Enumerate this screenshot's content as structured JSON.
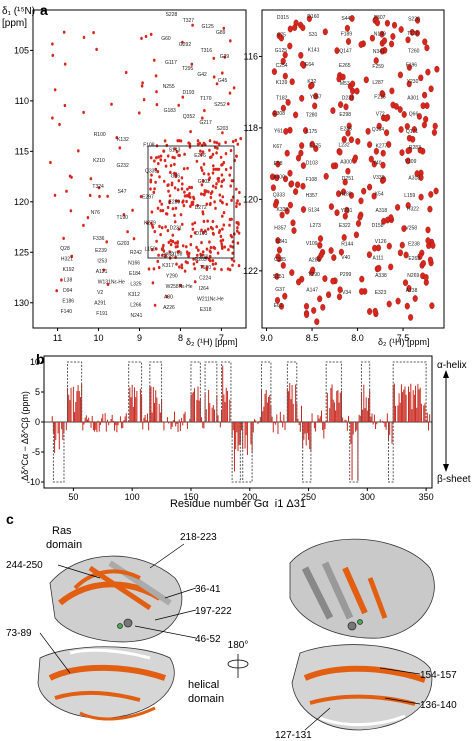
{
  "panel_a": {
    "label": "a",
    "ylabel_line1": "δ₁ (¹⁵N)",
    "ylabel_line2": "[ppm]",
    "left": {
      "xlabel": "δ₂ (¹H) [ppm]",
      "x_ticks": [
        "11",
        "10",
        "9",
        "8",
        "7"
      ],
      "y_ticks": [
        "105",
        "110",
        "115",
        "120",
        "125",
        "130"
      ],
      "peak_labels": [
        "S228",
        "T327",
        "G125",
        "G89",
        "G60",
        "G292",
        "T316",
        "G29",
        "G117",
        "T295",
        "G42",
        "G45",
        "N255",
        "D193",
        "T170",
        "S252",
        "G183",
        "Q352",
        "G217",
        "S203",
        "R100",
        "K132",
        "F108",
        "S143",
        "E276",
        "K210",
        "G232",
        "Q333",
        "G96",
        "G102",
        "T324",
        "S47",
        "E297",
        "E289",
        "D272",
        "N76",
        "T190",
        "K279",
        "D231",
        "D103",
        "F336",
        "G203",
        "L159",
        "D158",
        "R205",
        "Q28",
        "E239",
        "R242",
        "S263",
        "K70",
        "H321",
        "I253",
        "N166",
        "K317",
        "T120",
        "K192",
        "A121",
        "E184",
        "Y290",
        "C224",
        "L38",
        "W131Nε-He",
        "L325",
        "W258Nε-He",
        "I264",
        "D94",
        "V2",
        "K312",
        "A30",
        "W211Nε-He",
        "E186",
        "A291",
        "L266",
        "A226",
        "E318",
        "F140",
        "F191",
        "N241"
      ]
    },
    "right": {
      "xlabel": "δ₂ (¹H) [ppm]",
      "x_ticks": [
        "9.0",
        "8.5",
        "8.0",
        "7.5"
      ],
      "y_ticks": [
        "116",
        "118",
        "120",
        "122"
      ],
      "peak_labels": [
        "D315",
        "D160",
        "S44",
        "F307",
        "S228",
        "S75",
        "S31",
        "F189",
        "N149",
        "T120",
        "G125",
        "K141",
        "Q147",
        "N341",
        "T260",
        "C254",
        "E64",
        "E265",
        "F259",
        "F196",
        "K139",
        "K32",
        "M53",
        "L287",
        "Y230",
        "T182",
        "Y257",
        "D231",
        "F215",
        "A301",
        "E308",
        "T280",
        "E298",
        "V72",
        "Q66",
        "Y61",
        "L175",
        "E245",
        "Q164",
        "Q171",
        "K67",
        "E275",
        "L232",
        "K277",
        "R283",
        "E58",
        "D103",
        "A300",
        "Y40",
        "V109",
        "A300",
        "F108",
        "D251",
        "V339",
        "A318",
        "Q333",
        "H357",
        "H188",
        "K54",
        "L159",
        "K330",
        "S134",
        "Y231",
        "A318",
        "H322",
        "H357",
        "L273",
        "E322",
        "D158",
        "V258",
        "D341",
        "V109",
        "R144",
        "V126",
        "E238",
        "C335",
        "A285",
        "V40",
        "A111",
        "E263",
        "S151",
        "Y290",
        "P299",
        "A338",
        "N269",
        "G37",
        "A147",
        "V34",
        "E323",
        "A138",
        "E63"
      ]
    }
  },
  "panel_b": {
    "label": "b",
    "ylabel": "Δδ^Cα − Δδ^Cβ (ppm)",
    "xlabel": "Residue number Gα_i1 Δ31",
    "alpha_label": "α-helix",
    "beta_label": "β-sheet",
    "colors": {
      "bar": "#c8281e",
      "structure": "#555555"
    },
    "chart_data": {
      "type": "bar",
      "xlim": [
        25,
        355
      ],
      "ylim": [
        -11,
        11
      ],
      "x_ticks": [
        "50",
        "100",
        "150",
        "200",
        "250",
        "300",
        "350"
      ],
      "y_ticks": [
        "10",
        "5",
        "0",
        "-5",
        "-10"
      ],
      "helix_regions": [
        [
          45,
          57
        ],
        [
          97,
          108
        ],
        [
          115,
          125
        ],
        [
          150,
          158
        ],
        [
          162,
          172
        ],
        [
          176,
          184
        ],
        [
          210,
          218
        ],
        [
          232,
          240
        ],
        [
          265,
          278
        ],
        [
          295,
          302
        ],
        [
          322,
          350
        ]
      ],
      "sheet_regions": [
        [
          33,
          42
        ],
        [
          185,
          192
        ],
        [
          194,
          202
        ],
        [
          245,
          252
        ],
        [
          285,
          292
        ],
        [
          318,
          322
        ]
      ]
    }
  },
  "panel_c": {
    "label": "c",
    "ras_domain_label": "Ras\ndomain",
    "helical_domain_label": "helical\ndomain",
    "rotation_label": "180°",
    "left_callouts": [
      "244-250",
      "218-223",
      "36-41",
      "197-222",
      "46-52",
      "73-89"
    ],
    "right_callouts": [
      "154-157",
      "136-140",
      "127-131"
    ],
    "colors": {
      "ribbon": "#bdbdbd",
      "highlight": "#e25f12",
      "outline": "#333333"
    }
  }
}
